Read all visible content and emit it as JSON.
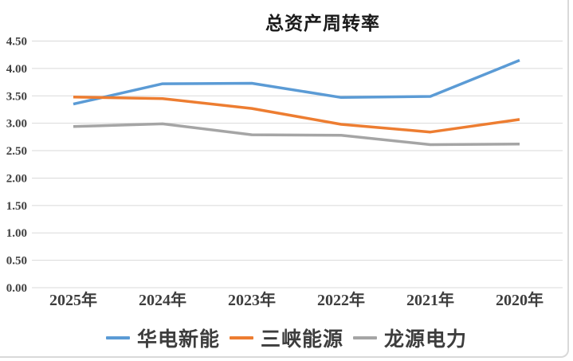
{
  "window": {
    "background": "#ffffff",
    "edge_color": "#d9d9d9"
  },
  "chart_data": {
    "type": "line",
    "title": "总资产周转率",
    "categories": [
      "2025年",
      "2024年",
      "2023年",
      "2022年",
      "2021年",
      "2020年"
    ],
    "series": [
      {
        "name": "华电新能",
        "color": "#5B9BD5",
        "values": [
          3.35,
          3.72,
          3.73,
          3.47,
          3.49,
          4.15
        ]
      },
      {
        "name": "三峡能源",
        "color": "#ED7D31",
        "values": [
          3.48,
          3.45,
          3.27,
          2.98,
          2.84,
          3.07
        ]
      },
      {
        "name": "龙源电力",
        "color": "#A5A5A5",
        "values": [
          2.94,
          2.99,
          2.79,
          2.78,
          2.61,
          2.62
        ]
      }
    ],
    "ylim": [
      0,
      4.5
    ],
    "yticks": [
      {
        "value": 4.5,
        "label": "4.50"
      },
      {
        "value": 4.0,
        "label": "4.00"
      },
      {
        "value": 3.5,
        "label": "3.50"
      },
      {
        "value": 3.0,
        "label": "3.00"
      },
      {
        "value": 2.5,
        "label": "2.50"
      },
      {
        "value": 2.0,
        "label": "2.00"
      },
      {
        "value": 1.5,
        "label": "1.50"
      },
      {
        "value": 1.0,
        "label": "1.00"
      },
      {
        "value": 0.5,
        "label": "0.50"
      },
      {
        "value": 0.0,
        "label": "0.00"
      }
    ],
    "grid": true,
    "gridline_color": "#d9d9d9",
    "axis_label_color": "#404040",
    "legend_position": "bottom"
  }
}
